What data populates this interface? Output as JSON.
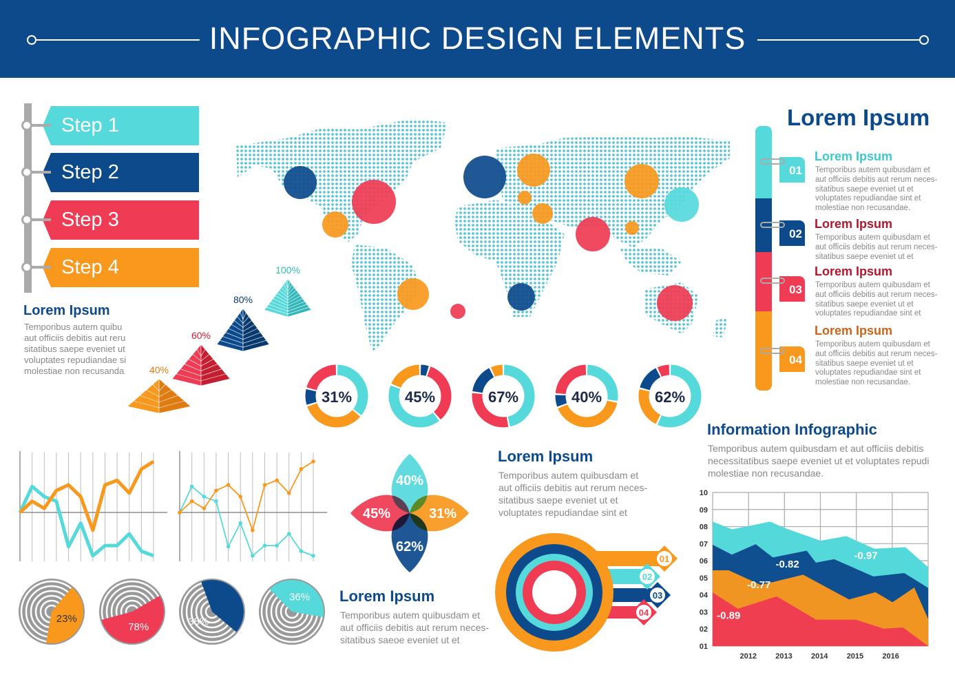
{
  "header": {
    "title": "INFOGRAPHIC DESIGN ELEMENTS"
  },
  "colors": {
    "navy": "#0d4a8c",
    "cyan": "#55d9db",
    "red": "#ef3b53",
    "orange": "#f8981d",
    "gray": "#aaaaaa"
  },
  "steps": [
    {
      "label": "Step 1",
      "color": "#55d9db"
    },
    {
      "label": "Step 2",
      "color": "#0d4a8c"
    },
    {
      "label": "Step 3",
      "color": "#ef3b53"
    },
    {
      "label": "Step 4",
      "color": "#f8981d"
    }
  ],
  "left_text": {
    "heading": "Lorem Ipsum",
    "lines": [
      "Temporibus autem quibu",
      "aut officiis debitis aut reru",
      "sitatibus saepe eveniet ut",
      "voluptates repudiandae si",
      "molestiae non recusanda"
    ]
  },
  "pyramids": [
    {
      "label": "40%",
      "color": "#f8981d"
    },
    {
      "label": "60%",
      "color": "#ef3b53"
    },
    {
      "label": "80%",
      "color": "#0d4a8c"
    },
    {
      "label": "100%",
      "color": "#55d9db"
    }
  ],
  "donuts": [
    {
      "label": "31%",
      "segments": [
        [
          "#55d9db",
          36
        ],
        [
          "#f8981d",
          34
        ],
        [
          "#0d4a8c",
          9
        ],
        [
          "#ef3b53",
          21
        ]
      ]
    },
    {
      "label": "45%",
      "segments": [
        [
          "#0d4a8c",
          5
        ],
        [
          "#ef3b53",
          34
        ],
        [
          "#55d9db",
          42
        ],
        [
          "#f8981d",
          19
        ]
      ]
    },
    {
      "label": "67%",
      "segments": [
        [
          "#55d9db",
          47
        ],
        [
          "#ef3b53",
          30
        ],
        [
          "#0d4a8c",
          16
        ],
        [
          "#f8981d",
          7
        ]
      ]
    },
    {
      "label": "40%",
      "segments": [
        [
          "#55d9db",
          28
        ],
        [
          "#f8981d",
          41
        ],
        [
          "#0d4a8c",
          7
        ],
        [
          "#ef3b53",
          24
        ]
      ]
    },
    {
      "label": "62%",
      "segments": [
        [
          "#55d9db",
          57
        ],
        [
          "#f8981d",
          22
        ],
        [
          "#0d4a8c",
          14
        ],
        [
          "#ef3b53",
          7
        ]
      ]
    }
  ],
  "right_panel": {
    "title": "Lorem Ipsum",
    "items": [
      {
        "num": "01",
        "heading": "Lorem Ipsum",
        "color": "#55d9db",
        "text": [
          "Temporibus autem quibusdam et",
          "aut officiis debitis aut rerum neces-",
          "sitatibus saepe eveniet ut et",
          "voluptates repudiandae sint et",
          "molestiae non recusandae."
        ]
      },
      {
        "num": "02",
        "heading": "Lorem Ipsum",
        "color": "#0d4a8c",
        "text": [
          "Temporibus autem quibusdam et",
          "aut officiis debitis aut rerum neces-",
          "sitatibus saepe eveniet ut et"
        ]
      },
      {
        "num": "03",
        "heading": "Lorem Ipsum",
        "color": "#ef3b53",
        "text": [
          "Temporibus autem quibusdam et",
          "aut officiis debitis aut rerum neces-",
          "sitatibus saepe eveniet ut et",
          "voluptates repudiandae sint et"
        ]
      },
      {
        "num": "04",
        "heading": "Lorem Ipsum",
        "color": "#f8981d",
        "text": [
          "Temporibus autem quibusdam et",
          "aut officiis debitis aut rerum neces-",
          "sitatibus saepe eveniet ut et",
          "voluptates repudiandae sint et",
          "molestiae non recusandae."
        ]
      }
    ]
  },
  "info": {
    "title": "Information Infographic",
    "lines": [
      "Temporibus autem quibusdam et aut officiis debitis",
      "necessitatibus saepe eveniet ut et voluptates repudi",
      "molestiae non recusandae."
    ]
  },
  "mid_text": {
    "heading": "Lorem Ipsum",
    "lines": [
      "Temporibus autem quibusdam et",
      "aut officiis debitis aut rerum neces-",
      "sitatibus saepe eveniet ut et",
      "voluptates repudiandae sint et"
    ]
  },
  "bottom_text": {
    "heading": "Lorem Ipsum",
    "lines": [
      "Temporibus autem quibusdam et",
      "aut officiis debitis aut rerum neces-",
      "sitatibus saeoe eveniet ut et"
    ]
  },
  "flower": [
    {
      "label": "40%",
      "color": "#55d9db"
    },
    {
      "label": "31%",
      "color": "#f8981d"
    },
    {
      "label": "62%",
      "color": "#0d4a8c"
    },
    {
      "label": "45%",
      "color": "#ef3b53"
    }
  ],
  "target": [
    {
      "num": "01",
      "color": "#f8981d"
    },
    {
      "num": "02",
      "color": "#55d9db"
    },
    {
      "num": "03",
      "color": "#0d4a8c"
    },
    {
      "num": "04",
      "color": "#ef3b53"
    }
  ],
  "radial_pies": [
    {
      "label": "23%",
      "color": "#f8981d"
    },
    {
      "label": "78%",
      "color": "#ef3b53"
    },
    {
      "label": "38%",
      "color": "#0d4a8c"
    },
    {
      "label": "36%",
      "color": "#55d9db"
    }
  ],
  "chart_data": [
    {
      "type": "line",
      "grid": true,
      "x": [
        0,
        1,
        2,
        3,
        4,
        5,
        6,
        7,
        8,
        9,
        10,
        11
      ],
      "series": [
        {
          "color": "#f8981d",
          "values": [
            0,
            2.2,
            0.8,
            4.3,
            5.4,
            3.1,
            -3.5,
            5.4,
            6.3,
            3.8,
            8.5,
            10
          ]
        },
        {
          "color": "#55d9db",
          "values": [
            0,
            5.1,
            3.1,
            2.2,
            -6.7,
            -2.1,
            -8.5,
            -6.5,
            -6.5,
            -4.2,
            -7.6,
            -8.5
          ]
        }
      ]
    },
    {
      "type": "line",
      "grid": true,
      "markers": true,
      "x": [
        0,
        1,
        2,
        3,
        4,
        5,
        6,
        7,
        8,
        9,
        10,
        11
      ],
      "series": [
        {
          "color": "#f8981d",
          "values": [
            0,
            2.2,
            0.8,
            4.3,
            5.4,
            3.1,
            -3.5,
            5.4,
            6.3,
            3.8,
            8.5,
            10
          ]
        },
        {
          "color": "#55d9db",
          "values": [
            0,
            5.1,
            3.1,
            2.2,
            -6.7,
            -2.1,
            -8.5,
            -6.5,
            -6.5,
            -4.2,
            -7.6,
            -8.5
          ]
        }
      ]
    },
    {
      "type": "area",
      "stacked": true,
      "grid": true,
      "yticks": [
        "01",
        "02",
        "03",
        "04",
        "05",
        "06",
        "07",
        "08",
        "09",
        "10"
      ],
      "ylim": [
        1,
        10
      ],
      "xticks": [
        "2012",
        "2013",
        "2014",
        "2015",
        "2016"
      ],
      "xlim": [
        2011,
        2017.05
      ],
      "series": [
        {
          "color": "#55d9db",
          "label": "-0.97",
          "top": [
            [
              2011,
              8.29
            ],
            [
              2011.54,
              7.84
            ],
            [
              2012.06,
              8.05
            ],
            [
              2012.61,
              8.29
            ],
            [
              2013.03,
              7.91
            ],
            [
              2014.03,
              7.17
            ],
            [
              2014.75,
              7.44
            ],
            [
              2015.54,
              6.7
            ],
            [
              2016.41,
              6.79
            ],
            [
              2017.05,
              5.62
            ]
          ]
        },
        {
          "color": "#0d4a8c",
          "label": "-0.82",
          "top": [
            [
              2011,
              6.94
            ],
            [
              2011.54,
              6.36
            ],
            [
              2012.21,
              6.97
            ],
            [
              2012.69,
              6.19
            ],
            [
              2013.64,
              6.59
            ],
            [
              2013.9,
              5.89
            ],
            [
              2014.41,
              6.09
            ],
            [
              2015.51,
              5.08
            ],
            [
              2016.38,
              5.28
            ],
            [
              2017.05,
              4.41
            ]
          ]
        },
        {
          "color": "#f8981d",
          "label": "-0.77",
          "top": [
            [
              2011,
              5.44
            ],
            [
              2011.45,
              5.44
            ],
            [
              2012.35,
              4.58
            ],
            [
              2013.54,
              5.18
            ],
            [
              2014.83,
              3.73
            ],
            [
              2015.57,
              4.16
            ],
            [
              2016.05,
              3.57
            ],
            [
              2016.66,
              4.43
            ],
            [
              2017.05,
              2.59
            ]
          ]
        },
        {
          "color": "#ef3b53",
          "label": "-0.89",
          "top": [
            [
              2011,
              4.14
            ],
            [
              2011.71,
              3.19
            ],
            [
              2012.8,
              3.91
            ],
            [
              2013.9,
              2.55
            ],
            [
              2015.02,
              2.55
            ],
            [
              2015.8,
              2.02
            ],
            [
              2016.34,
              2.09
            ],
            [
              2017.05,
              1.0
            ]
          ]
        }
      ]
    }
  ]
}
